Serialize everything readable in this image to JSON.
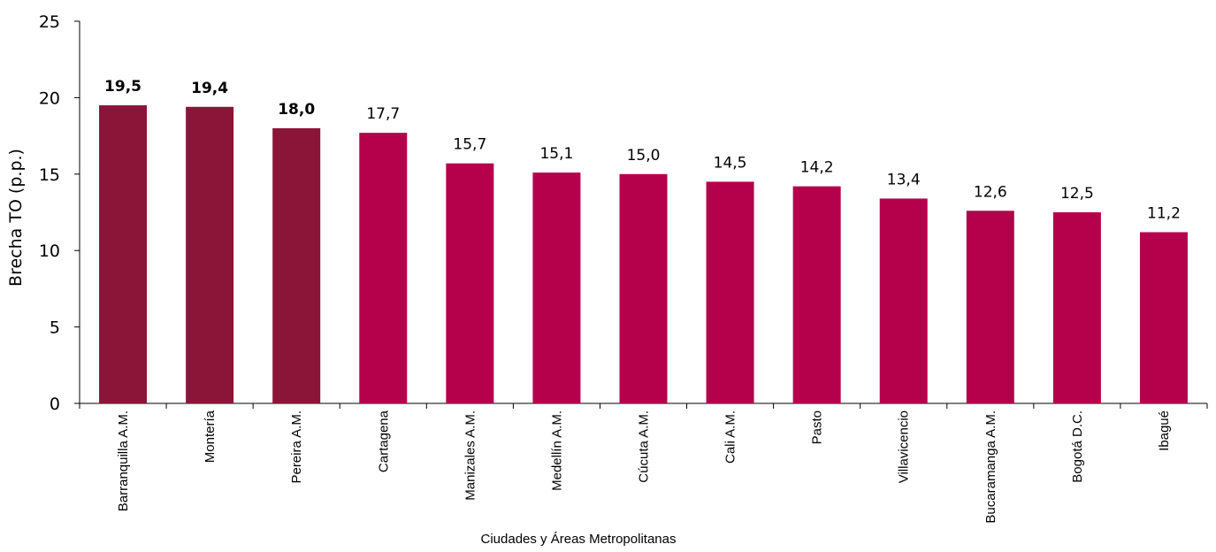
{
  "chart_data": {
    "type": "bar",
    "categories": [
      "Barranquilla A.M.",
      "Montería",
      "Pereira A.M.",
      "Cartagena",
      "Manizales A.M.",
      "Medellín A.M.",
      "Cúcuta A.M.",
      "Cali A.M.",
      "Pasto",
      "Villavicencio",
      "Bucaramanga A.M.",
      "Bogotá D.C.",
      "Ibagué"
    ],
    "values": [
      19.5,
      19.4,
      18.0,
      17.7,
      15.7,
      15.1,
      15.0,
      14.5,
      14.2,
      13.4,
      12.6,
      12.5,
      11.2
    ],
    "value_labels": [
      "19,5",
      "19,4",
      "18,0",
      "17,7",
      "15,7",
      "15,1",
      "15,0",
      "14,5",
      "14,2",
      "13,4",
      "12,6",
      "12,5",
      "11,2"
    ],
    "highlighted": [
      true,
      true,
      true,
      false,
      false,
      false,
      false,
      false,
      false,
      false,
      false,
      false,
      false
    ],
    "colors": {
      "highlight": "#8B1538",
      "default": "#B5004B"
    },
    "xlabel": "Ciudades y  Áreas Metropolitanas",
    "ylabel": "Brecha TO (p.p.)",
    "ylim": [
      0,
      25
    ],
    "yticks": [
      0,
      5,
      10,
      15,
      20,
      25
    ],
    "grid": false,
    "legend": "none"
  }
}
